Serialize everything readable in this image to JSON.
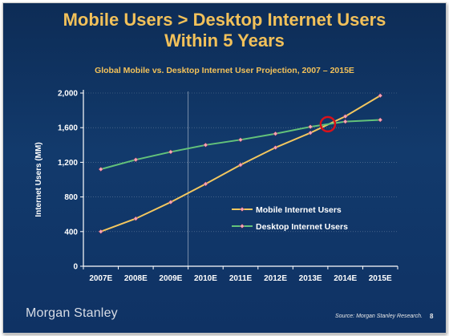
{
  "slide": {
    "title_line1": "Mobile Users > Desktop Internet Users",
    "title_line2": "Within 5 Years",
    "footer_logo": "Morgan Stanley",
    "source": "Source: Morgan Stanley Research.",
    "page_number": "8"
  },
  "colors": {
    "mobile": "#f3c75f",
    "desktop": "#63c27a",
    "marker_fill": "#f2a7b8",
    "highlight_circle": "#d8121b",
    "axis": "#ffffff",
    "title": "#f2c15a"
  },
  "chart_data": {
    "type": "line",
    "title": "Global Mobile vs. Desktop Internet User Projection, 2007 – 2015E",
    "xlabel": "",
    "ylabel": "Internet Users (MM)",
    "categories": [
      "2007E",
      "2008E",
      "2009E",
      "2010E",
      "2011E",
      "2012E",
      "2013E",
      "2014E",
      "2015E"
    ],
    "series": [
      {
        "name": "Mobile Internet Users",
        "values": [
          400,
          550,
          740,
          950,
          1170,
          1370,
          1540,
          1730,
          1970
        ]
      },
      {
        "name": "Desktop Internet Users",
        "values": [
          1120,
          1230,
          1320,
          1400,
          1460,
          1530,
          1610,
          1670,
          1690
        ]
      }
    ],
    "ylim": [
      0,
      2000
    ],
    "yticks": [
      0,
      400,
      800,
      1200,
      1600,
      2000
    ],
    "ytick_labels": [
      "0",
      "400",
      "800",
      "1,200",
      "1,600",
      "2,000"
    ],
    "grid": true,
    "legend": "center-right",
    "vertical_divider_between": [
      "2009E",
      "2010E"
    ],
    "crossover_highlight": {
      "x": "2013E–2014E",
      "y": 1640
    }
  }
}
